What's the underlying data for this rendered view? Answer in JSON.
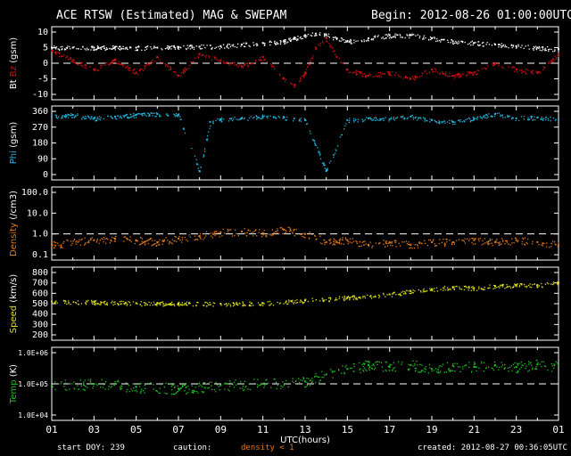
{
  "header": {
    "title": "ACE RTSW (Estimated) MAG & SWEPAM",
    "begin": "Begin: 2012-08-26 01:00:00UTC"
  },
  "footer": {
    "start_doy": "start DOY: 239",
    "caution": "caution:",
    "density_note": "density < 1",
    "created": "created: 2012-08-27 00:36:05UTC"
  },
  "colors": {
    "bt": "#ffffff",
    "bz": "#d01010",
    "phi": "#22b8e0",
    "density": "#e07818",
    "speed": "#e0e020",
    "temp": "#20c020",
    "frame": "#ffffff",
    "dash": "#ffffff"
  },
  "chart_data": [
    {
      "type": "scatter",
      "ylabel_parts": [
        "Bt",
        "Bz",
        "(gsm)"
      ],
      "yticks": [
        "10",
        "5",
        "0",
        "-5",
        "-10"
      ],
      "ylim": [
        -10,
        10
      ],
      "ref_line": 0,
      "series": [
        {
          "name": "Bt",
          "x": [
            0,
            1,
            2,
            3,
            4,
            5,
            6,
            7,
            8,
            9,
            10,
            11,
            11.5,
            12,
            12.5,
            13,
            13.5,
            14,
            15,
            16,
            17,
            18,
            19,
            20,
            21,
            22,
            23,
            24
          ],
          "values": [
            5,
            5,
            5,
            5.2,
            5,
            5,
            5.2,
            5.3,
            5.5,
            6,
            6.5,
            7,
            8,
            9,
            9.5,
            9,
            8,
            7,
            8,
            9,
            9,
            8,
            7,
            6.5,
            6,
            5.5,
            5,
            4.5
          ]
        },
        {
          "name": "Bz",
          "x": [
            0,
            1,
            2,
            3,
            4,
            5,
            6,
            7,
            8,
            9,
            10,
            11,
            11.5,
            12,
            12.5,
            13,
            13.5,
            14,
            15,
            16,
            17,
            18,
            19,
            20,
            21,
            22,
            23,
            24
          ],
          "values": [
            4,
            1,
            -2,
            1,
            -3,
            2,
            -4,
            3,
            1,
            -1,
            2,
            -5,
            -7,
            -3,
            5,
            8,
            2,
            -2,
            -4,
            -3,
            -5,
            -2,
            -4,
            -3,
            0,
            -2,
            -3,
            3
          ]
        }
      ]
    },
    {
      "type": "scatter",
      "ylabel_parts": [
        "Phi",
        "(gsm)"
      ],
      "yticks": [
        "360",
        "270",
        "180",
        "90",
        "0"
      ],
      "ylim": [
        0,
        360
      ],
      "series": [
        {
          "name": "Phi",
          "x": [
            0,
            1,
            2,
            3,
            4,
            5,
            6,
            7,
            7.5,
            8,
            9,
            10,
            11,
            12,
            13,
            14,
            15,
            16,
            17,
            18,
            19,
            20,
            21,
            22,
            23,
            24
          ],
          "values": [
            330,
            340,
            320,
            330,
            340,
            345,
            340,
            20,
            300,
            315,
            320,
            330,
            325,
            310,
            20,
            310,
            320,
            315,
            330,
            310,
            300,
            320,
            345,
            320,
            325,
            315
          ]
        }
      ]
    },
    {
      "type": "scatter",
      "scale": "log",
      "ylabel_parts": [
        "Density",
        "(/cm3)"
      ],
      "yticks": [
        "100.0",
        "10.0",
        "1.0",
        "0.1"
      ],
      "ylim": [
        0.1,
        100
      ],
      "ref_line": 1,
      "series": [
        {
          "name": "Density",
          "x": [
            0,
            2,
            3,
            4,
            5,
            6,
            7,
            8,
            9,
            10,
            11,
            12,
            13,
            14,
            15,
            16,
            17,
            18,
            19,
            20,
            21,
            22,
            23,
            24
          ],
          "values": [
            0.3,
            0.5,
            0.6,
            0.5,
            0.4,
            0.6,
            0.8,
            1.2,
            1.3,
            1.1,
            1.6,
            1.0,
            0.4,
            0.5,
            0.3,
            0.4,
            0.3,
            0.4,
            0.4,
            0.5,
            0.4,
            0.5,
            0.4,
            0.3
          ]
        }
      ]
    },
    {
      "type": "scatter",
      "ylabel_parts": [
        "Speed",
        "(km/s)"
      ],
      "yticks": [
        "800",
        "700",
        "600",
        "500",
        "400",
        "300",
        "200"
      ],
      "ylim": [
        200,
        800
      ],
      "series": [
        {
          "name": "Speed",
          "x": [
            0,
            2,
            4,
            6,
            8,
            10,
            12,
            14,
            16,
            17,
            18,
            19,
            20,
            21,
            22,
            23,
            24
          ],
          "values": [
            520,
            515,
            505,
            500,
            500,
            505,
            530,
            560,
            590,
            620,
            640,
            660,
            650,
            670,
            680,
            680,
            700
          ]
        }
      ]
    },
    {
      "type": "scatter",
      "scale": "log",
      "ylabel_parts": [
        "Temp",
        "(K)"
      ],
      "yticks": [
        "1.0E+06",
        "1.0E+05",
        "1.0E+04"
      ],
      "ylim": [
        10000,
        1000000
      ],
      "ref_line": 100000,
      "series": [
        {
          "name": "Temp",
          "x": [
            0,
            2,
            4,
            6,
            8,
            10,
            12,
            13,
            14,
            15,
            16,
            17,
            18,
            19,
            20,
            21,
            22,
            23,
            24
          ],
          "values": [
            90000,
            100000,
            80000,
            70000,
            90000,
            100000,
            120000,
            200000,
            300000,
            400000,
            350000,
            400000,
            300000,
            380000,
            350000,
            400000,
            350000,
            420000,
            380000
          ]
        }
      ]
    }
  ],
  "xaxis": {
    "ticks": [
      "01",
      "03",
      "05",
      "07",
      "09",
      "11",
      "13",
      "15",
      "17",
      "19",
      "21",
      "23",
      "01"
    ],
    "label": "UTC(hours)",
    "range_hours": [
      0,
      24
    ]
  }
}
